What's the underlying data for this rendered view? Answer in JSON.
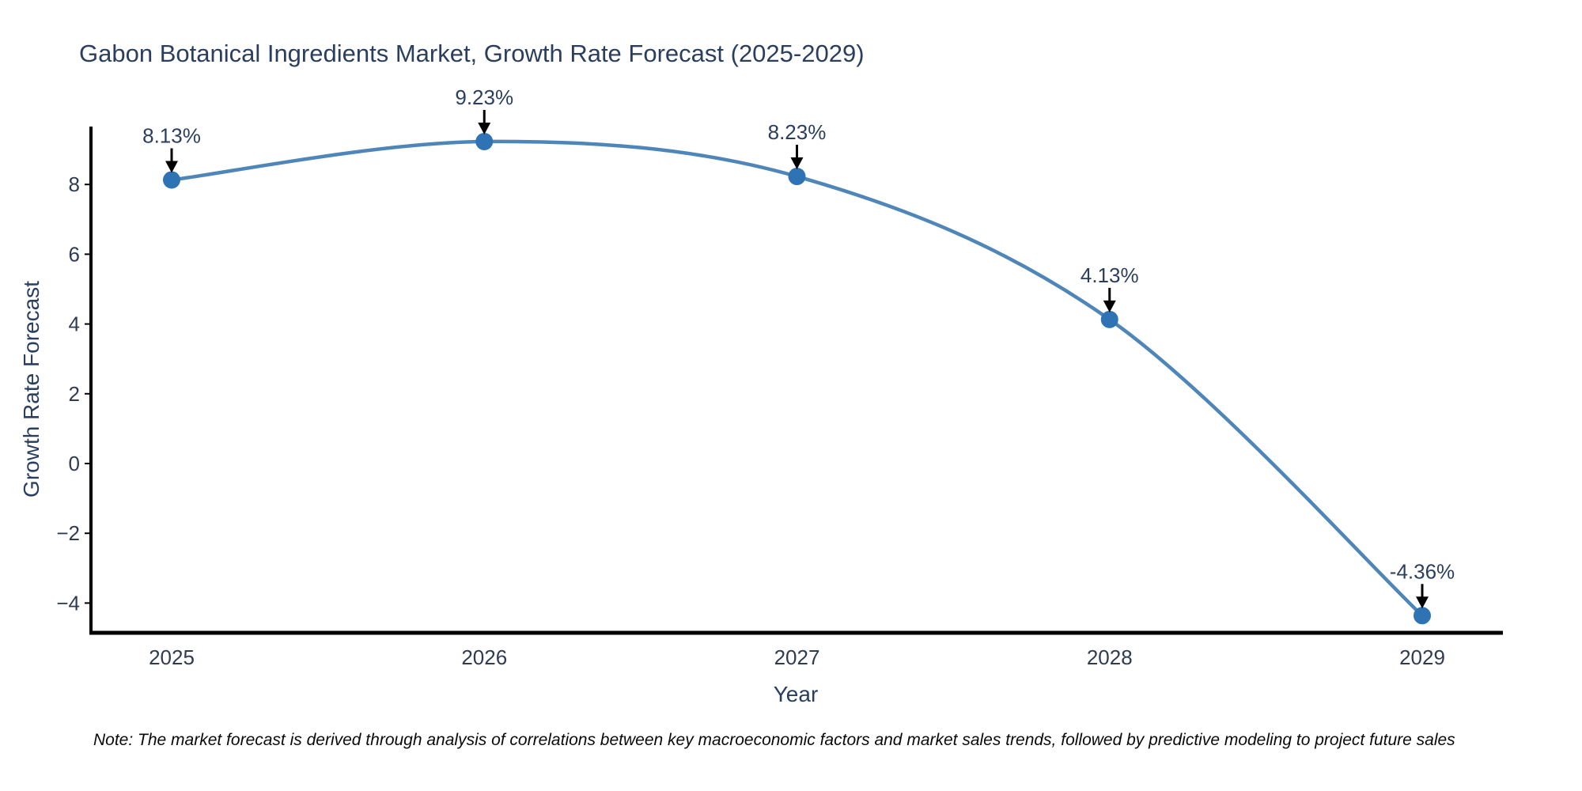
{
  "title": "Gabon Botanical Ingredients Market, Growth Rate Forecast (2025-2029)",
  "chart_data": {
    "type": "line",
    "x": [
      2025,
      2026,
      2027,
      2028,
      2029
    ],
    "series": [
      {
        "name": "Growth Rate Forecast",
        "values": [
          8.13,
          9.23,
          8.23,
          4.13,
          -4.36
        ]
      }
    ],
    "point_labels": [
      "8.13%",
      "9.23%",
      "8.23%",
      "4.13%",
      "-4.36%"
    ],
    "title": "Gabon Botanical Ingredients Market, Growth Rate Forecast (2025-2029)",
    "xlabel": "Year",
    "ylabel": "Growth Rate Forecast",
    "yticks": [
      8,
      6,
      4,
      2,
      0,
      -2,
      -4
    ],
    "ylim": [
      -4.85,
      9.66
    ],
    "grid": false,
    "legend": "none",
    "line_shape": "spline",
    "colors": {
      "line": "#4f86ba",
      "marker": "#2e74b5",
      "axis": "#000000",
      "title_text": "#2a3f5f",
      "tick_text": "#2f3b52",
      "annotation_arrow": "#000000"
    }
  },
  "note": "Note: The market forecast is derived through analysis of correlations between key macroeconomic factors and market sales trends, followed by predictive modeling to project future sales"
}
